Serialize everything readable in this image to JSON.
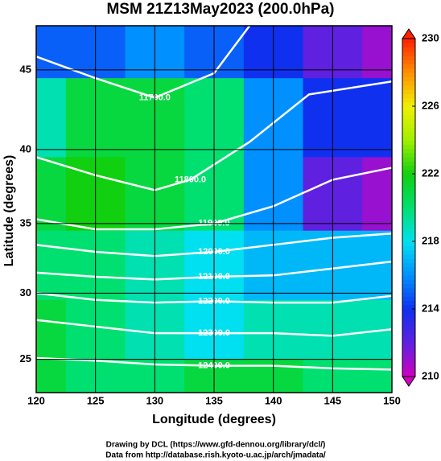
{
  "chart_data": {
    "type": "map",
    "title": "MSM 21Z13May2023 (200.0hPa)",
    "xlabel": "Longitude (degrees)",
    "ylabel": "Latitude  (degrees)",
    "xlim": [
      120,
      150
    ],
    "ylim": [
      22.4,
      47.6
    ],
    "projection": "mercator",
    "xticks": [
      120,
      125,
      130,
      135,
      140,
      145,
      150
    ],
    "yticks": [
      25,
      30,
      35,
      40,
      45
    ],
    "grid": true,
    "field": {
      "lon": [
        120,
        125,
        130,
        135,
        140,
        145,
        150
      ],
      "lat": [
        47,
        42,
        37,
        32,
        27,
        23
      ],
      "values": [
        [
          215,
          215,
          216,
          215,
          214,
          212,
          211
        ],
        [
          219,
          221,
          221,
          220,
          216,
          214,
          214
        ],
        [
          221,
          222,
          221,
          220,
          216,
          212,
          211
        ],
        [
          220,
          220,
          219,
          218,
          217,
          217,
          217
        ],
        [
          221,
          220,
          219,
          218,
          219,
          219,
          219
        ],
        [
          221,
          220,
          220,
          221,
          221,
          220,
          220
        ]
      ]
    },
    "colorbar": {
      "clim": [
        210,
        230
      ],
      "ticks": [
        210,
        214,
        218,
        222,
        226,
        230
      ],
      "colors": [
        "#d000c0",
        "#6020e0",
        "#1030f0",
        "#0090ff",
        "#00e0f0",
        "#00e070",
        "#10d010",
        "#a0f000",
        "#f0f000",
        "#ff9000",
        "#ff2000"
      ]
    },
    "contour_color": "#ffffff",
    "contours": [
      {
        "level": {
          "value": 11700,
          "label": "11700.0"
        },
        "lon": [
          120,
          125,
          130,
          135,
          138
        ],
        "lat": [
          45.8,
          44.5,
          43.3,
          44.8,
          47.6
        ]
      },
      {
        "level": {
          "value": 11800,
          "label": "11800.0"
        },
        "lon": [
          120,
          125,
          130,
          133,
          138,
          143,
          150
        ],
        "lat": [
          39.5,
          38.3,
          37.3,
          38,
          40.5,
          43.5,
          44.3
        ]
      },
      {
        "level": {
          "value": 11900,
          "label": "11900.0"
        },
        "lon": [
          120,
          125,
          130,
          135,
          140,
          145,
          150
        ],
        "lat": [
          35.3,
          34.6,
          34.6,
          35.0,
          36.2,
          38.0,
          38.8
        ]
      },
      {
        "level": {
          "value": 12000,
          "label": "12000.0"
        },
        "lon": [
          120,
          125,
          130,
          135,
          140,
          145,
          150
        ],
        "lat": [
          33.5,
          33,
          32.7,
          33,
          33.5,
          34,
          34.3
        ]
      },
      {
        "level": {
          "value": 12100,
          "label": "12100.0"
        },
        "lon": [
          120,
          125,
          130,
          135,
          140,
          145,
          150
        ],
        "lat": [
          31.5,
          31.2,
          31,
          31.2,
          31.3,
          31.8,
          32.3
        ]
      },
      {
        "level": {
          "value": 12200,
          "label": "12200.0"
        },
        "lon": [
          120,
          125,
          130,
          135,
          140,
          145,
          150
        ],
        "lat": [
          30,
          29.5,
          29.3,
          29.4,
          29.3,
          29.3,
          29.8
        ]
      },
      {
        "level": {
          "value": 12300,
          "label": "12300.0"
        },
        "lon": [
          120,
          125,
          130,
          135,
          140,
          145,
          150
        ],
        "lat": [
          28,
          27.5,
          27,
          27,
          27,
          26.8,
          27.3
        ]
      },
      {
        "level": {
          "value": 12400,
          "label": "12400.0"
        },
        "lon": [
          120,
          125,
          130,
          135,
          140,
          145,
          150
        ],
        "lat": [
          25.1,
          24.9,
          24.6,
          24.5,
          24.5,
          24.3,
          24.2
        ]
      }
    ],
    "footer": [
      "Drawing by DCL (https://www.gfd-dennou.org/library/dcl/)",
      "Data from http://database.rish.kyoto-u.ac.jp/arch/jmadata/"
    ]
  }
}
